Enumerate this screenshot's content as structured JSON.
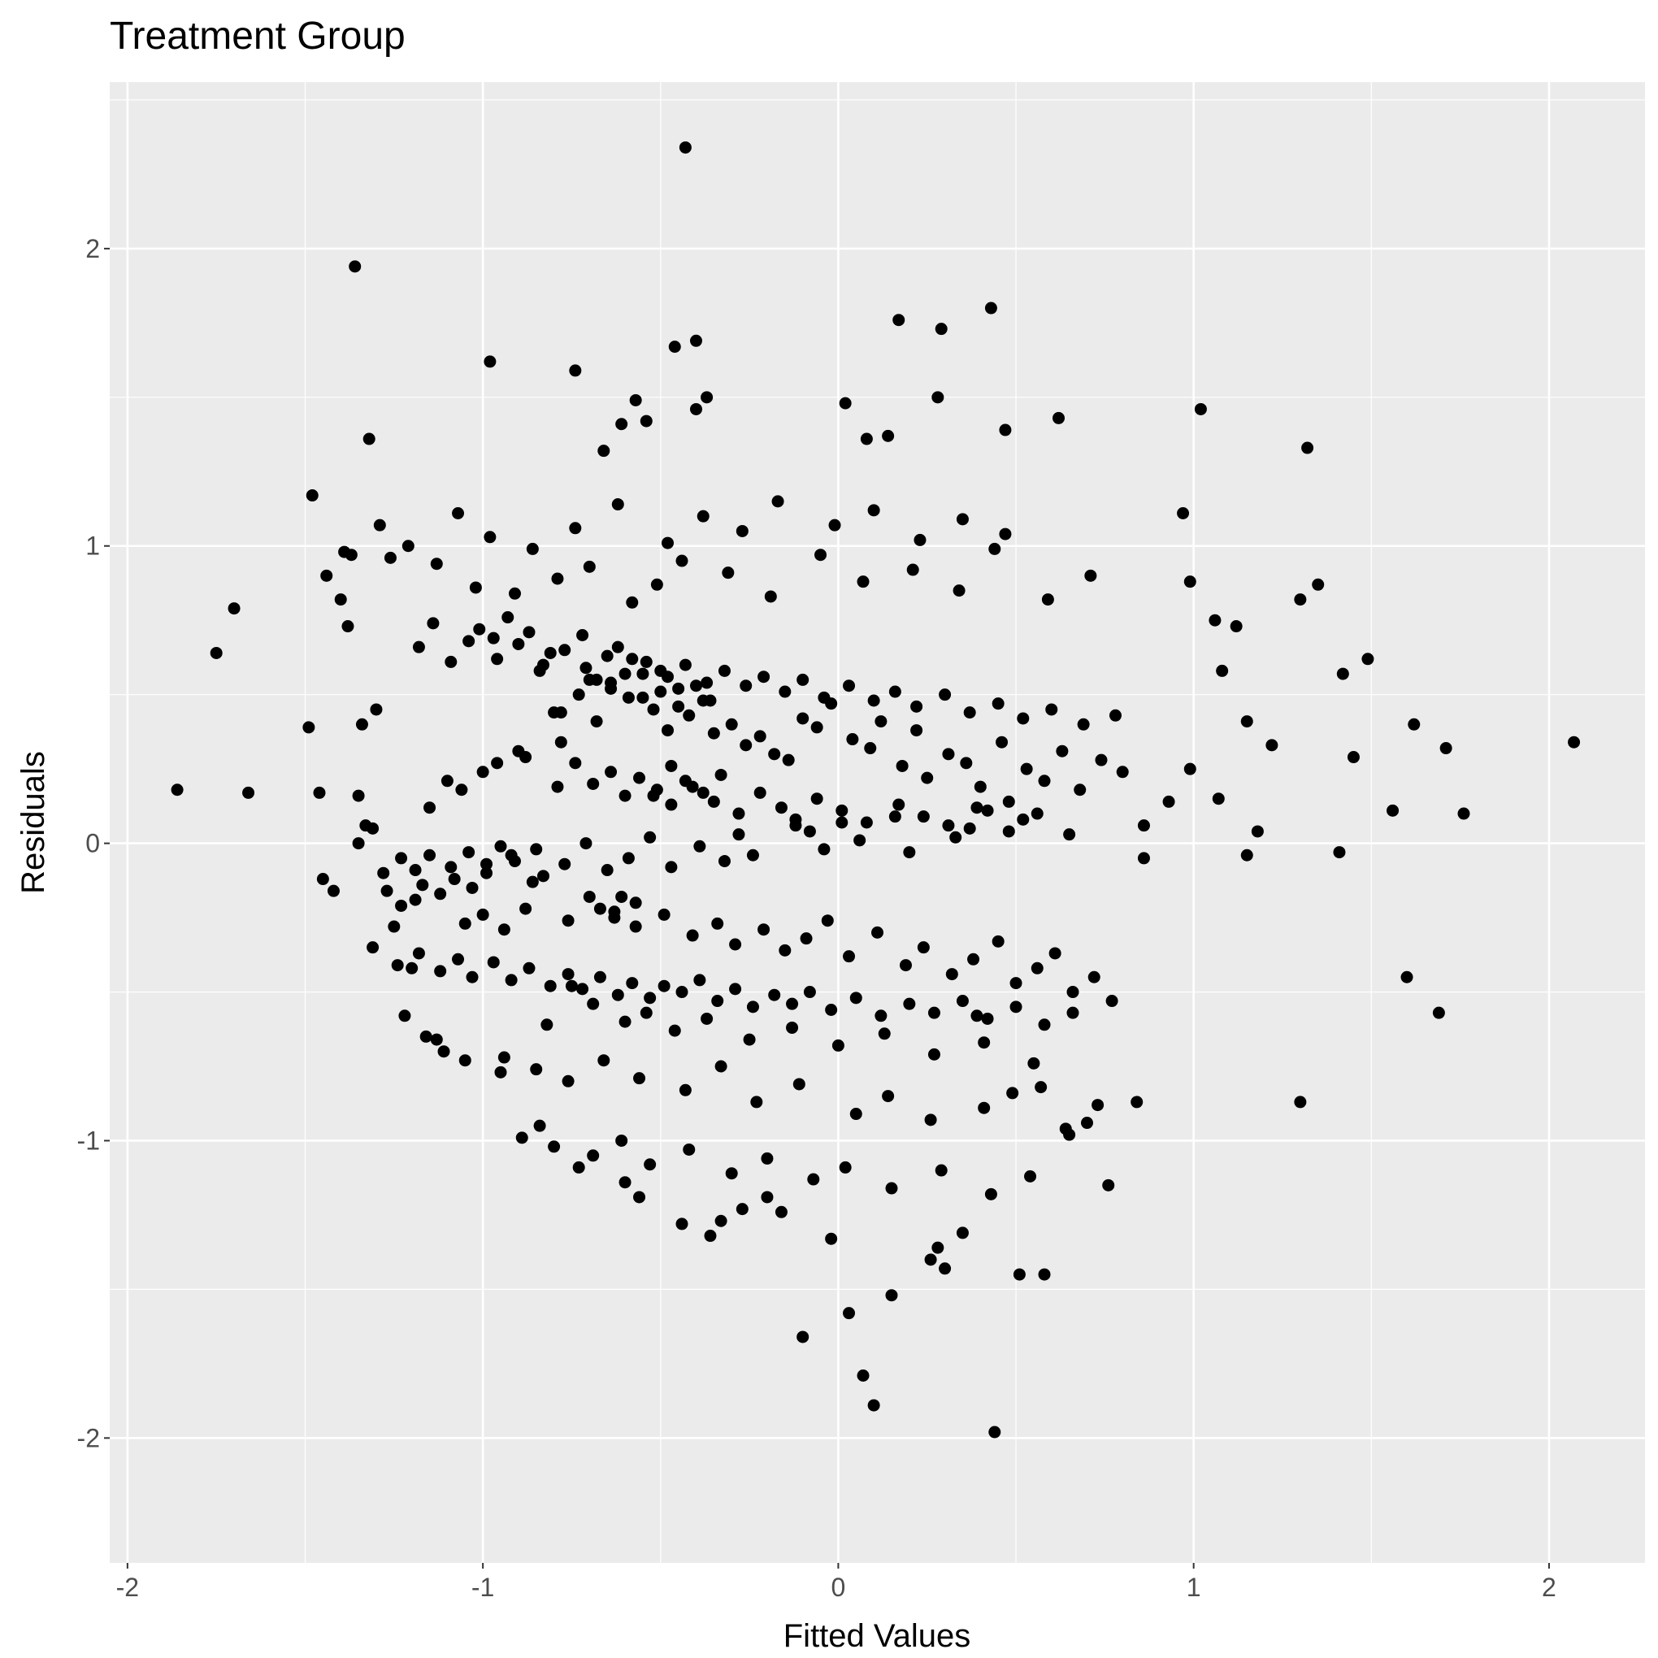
{
  "chart_data": {
    "type": "scatter",
    "title": "Treatment Group",
    "xlabel": "Fitted Values",
    "ylabel": "Residuals",
    "xlim": [
      -2.05,
      2.27
    ],
    "ylim": [
      -2.42,
      2.56
    ],
    "x_ticks": [
      -2,
      -1,
      0,
      1,
      2
    ],
    "x_tick_labels": [
      "-2",
      "-1",
      "0",
      "1",
      "2"
    ],
    "y_ticks": [
      -2,
      -1,
      0,
      1,
      2
    ],
    "y_tick_labels": [
      "-2",
      "-1",
      "0",
      "1",
      "2"
    ],
    "grid": true,
    "legend": "none",
    "colors": {
      "panel": "#EBEBEB",
      "grid": "#FFFFFF",
      "points": "#000000",
      "ticks": "#333333"
    },
    "series": [
      {
        "x": [
          -1.86,
          -1.75,
          -1.7,
          -1.66,
          -1.49,
          -1.48,
          -1.46,
          -1.45,
          -1.44,
          -1.42,
          -1.4,
          -1.39,
          -1.38,
          -1.37,
          -1.36,
          -1.35,
          -1.34,
          -1.33,
          -1.32,
          -1.31,
          -1.3,
          -1.29,
          -0.43,
          -0.46,
          -0.4,
          -0.74,
          -0.98,
          0.17,
          0.29,
          0.43,
          0.02,
          -0.37,
          0.28,
          0.47,
          -0.57,
          -0.61,
          -0.4,
          -0.66,
          -0.54,
          0.08,
          0.14,
          0.86,
          0.97,
          1.02,
          0.62,
          0.99,
          1.06,
          1.12,
          1.32,
          1.35,
          1.3,
          1.42,
          1.49,
          1.15,
          1.22,
          1.45,
          1.62,
          1.71,
          2.07,
          1.76,
          1.56,
          1.41,
          1.08,
          1.15,
          1.18,
          0.99,
          0.93,
          0.86,
          1.07,
          1.6,
          1.69,
          0.84,
          1.3,
          0.76,
          0.7,
          0.65,
          0.58,
          0.44,
          0.51,
          0.41,
          0.35,
          0.3,
          0.28,
          0.26,
          0.15,
          0.1,
          0.07,
          0.03,
          -0.1,
          -0.27,
          -0.2,
          -0.02,
          -0.16,
          -0.33,
          -0.36,
          -0.44,
          -0.56,
          -0.6,
          -0.73,
          -0.84,
          -0.95,
          -1.05,
          -1.13,
          -1.22,
          -1.2,
          -1.25,
          -0.62,
          -0.5,
          -0.58,
          -0.64,
          -0.7,
          -0.55,
          -0.52,
          -0.48,
          -0.68,
          -0.78,
          -0.88,
          -0.8,
          -0.9,
          -0.96,
          -1.0,
          -1.06,
          -1.1,
          -1.15,
          -0.45,
          -0.42,
          -0.38,
          -0.35,
          -0.3,
          -0.26,
          -0.22,
          -0.18,
          -0.14,
          -0.1,
          -0.06,
          -0.02,
          0.04,
          0.09,
          0.12,
          0.18,
          0.22,
          0.25,
          0.31,
          0.36,
          0.4,
          0.46,
          0.53,
          0.58,
          0.63,
          0.68,
          0.74,
          0.8,
          0.52,
          0.48,
          0.42,
          0.37,
          0.33,
          0.2,
          0.16,
          0.06,
          0.01,
          -0.04,
          -0.08,
          -0.12,
          -0.24,
          -0.28,
          -0.32,
          -0.39,
          -0.47,
          -0.53,
          -0.59,
          -0.65,
          -0.71,
          -0.77,
          -0.83,
          -0.86,
          -0.92,
          -0.99,
          -1.03,
          -1.08,
          -1.12,
          -1.17,
          -1.19,
          -1.23,
          -1.27,
          -0.67,
          -0.63,
          -0.61,
          -0.57,
          -0.49,
          -0.41,
          -0.34,
          -0.29,
          -0.21,
          -0.15,
          -0.09,
          -0.03,
          0.03,
          0.11,
          0.19,
          0.24,
          0.32,
          0.38,
          0.45,
          0.5,
          0.56,
          0.61,
          0.66,
          0.72,
          0.77,
          -0.75,
          -0.81,
          -0.87,
          -0.93,
          -0.97,
          -1.01,
          -1.04,
          -1.09,
          -1.14,
          -1.18,
          -0.72,
          -0.69,
          -0.6,
          -0.54,
          -0.46,
          -0.37,
          -0.25,
          -0.13,
          0.0,
          0.13,
          0.27,
          0.39,
          0.55,
          -0.82,
          -0.91,
          -0.79,
          -0.7,
          -0.58,
          -0.51,
          -0.44,
          -0.31,
          -0.19,
          -0.05,
          0.07,
          0.21,
          0.34,
          0.44,
          0.59,
          0.71,
          -1.02,
          -1.11,
          -1.16,
          -0.94,
          -0.85,
          -0.76,
          -0.66,
          -0.56,
          -0.43,
          -0.33,
          -0.23,
          -0.11,
          0.05,
          0.14,
          0.26,
          0.41,
          0.49,
          0.64,
          0.73,
          0.57,
          0.47,
          0.35,
          0.23,
          0.1,
          -0.01,
          -0.17,
          -0.27,
          -0.38,
          -0.48,
          -0.62,
          -0.74,
          -0.86,
          -0.98,
          -1.07,
          -1.21,
          -1.26,
          -1.13,
          -0.89,
          -0.8,
          -0.69,
          -0.61,
          -0.53,
          -0.42,
          -0.3,
          -0.2,
          -0.07,
          0.02,
          0.15,
          0.29,
          0.43,
          0.54,
          -0.64,
          -0.59,
          -0.55,
          -0.5,
          -0.45,
          -0.4,
          -0.36,
          -0.68,
          -0.73,
          -0.78,
          -0.84,
          -0.57,
          -0.63,
          -0.7,
          -0.76,
          -0.88,
          -0.94,
          -1.0,
          -1.05,
          -0.52,
          -0.47,
          -0.41,
          -0.35,
          -0.28,
          -0.22,
          -0.16,
          -0.12,
          -0.06,
          0.01,
          0.08,
          0.17,
          0.24,
          0.31,
          0.39,
          0.48,
          0.56,
          0.65,
          -0.96,
          -0.9,
          -0.83,
          -0.77,
          -0.71,
          -0.65,
          -0.6,
          -0.54,
          -0.48,
          -0.43,
          -0.37,
          -0.32,
          -0.26,
          -0.21,
          -0.15,
          -0.1,
          -0.04,
          0.03,
          0.1,
          0.16,
          0.22,
          0.3,
          0.37,
          0.45,
          0.52,
          0.6,
          0.69,
          0.78,
          -1.24,
          -1.18,
          -1.12,
          -1.07,
          -1.03,
          -0.97,
          -0.92,
          -0.87,
          -0.81,
          -0.76,
          -0.72,
          -0.67,
          -0.62,
          -0.58,
          -0.53,
          -0.49,
          -0.44,
          -0.39,
          -0.34,
          -0.29,
          -0.24,
          -0.18,
          -0.13,
          -0.08,
          -0.02,
          0.05,
          0.12,
          0.2,
          0.27,
          0.35,
          0.42,
          0.5,
          0.58,
          0.66,
          -0.69,
          -0.64,
          -0.6,
          -0.56,
          -0.51,
          -0.47,
          -0.43,
          -0.38,
          -0.33,
          -0.79,
          -0.74,
          -0.85,
          -0.91,
          -0.95,
          -0.99,
          -1.04,
          -1.09,
          -1.15,
          -1.19,
          -1.23,
          -1.28,
          -1.31,
          -1.35
        ],
        "y": [
          0.18,
          0.64,
          0.79,
          0.17,
          0.39,
          1.17,
          0.17,
          -0.12,
          0.9,
          -0.16,
          0.82,
          0.98,
          0.73,
          0.97,
          1.94,
          0.16,
          0.4,
          0.06,
          1.36,
          -0.35,
          0.45,
          1.07,
          2.34,
          1.67,
          1.69,
          1.59,
          1.62,
          1.76,
          1.73,
          1.8,
          1.48,
          1.5,
          1.5,
          1.39,
          1.49,
          1.41,
          1.46,
          1.32,
          1.42,
          1.36,
          1.37,
          0.06,
          1.11,
          1.46,
          1.43,
          0.88,
          0.75,
          0.73,
          1.33,
          0.87,
          0.82,
          0.57,
          0.62,
          0.41,
          0.33,
          0.29,
          0.4,
          0.32,
          0.34,
          0.1,
          0.11,
          -0.03,
          0.58,
          -0.04,
          0.04,
          0.25,
          0.14,
          -0.05,
          0.15,
          -0.45,
          -0.57,
          -0.87,
          -0.87,
          -1.15,
          -0.94,
          -0.98,
          -1.45,
          -1.98,
          -1.45,
          -0.67,
          -1.31,
          -1.43,
          -1.36,
          -1.4,
          -1.52,
          -1.89,
          -1.79,
          -1.58,
          -1.66,
          -1.23,
          -1.19,
          -1.33,
          -1.24,
          -1.27,
          -1.32,
          -1.28,
          -1.19,
          -1.14,
          -1.09,
          -0.95,
          -0.77,
          -0.73,
          -0.66,
          -0.58,
          -0.42,
          -0.28,
          0.66,
          0.58,
          0.62,
          0.52,
          0.55,
          0.49,
          0.45,
          0.38,
          0.41,
          0.34,
          0.29,
          0.44,
          0.31,
          0.27,
          0.24,
          0.18,
          0.21,
          0.12,
          0.52,
          0.43,
          0.48,
          0.37,
          0.4,
          0.33,
          0.36,
          0.3,
          0.28,
          0.42,
          0.39,
          0.47,
          0.35,
          0.32,
          0.41,
          0.26,
          0.38,
          0.22,
          0.3,
          0.27,
          0.19,
          0.34,
          0.25,
          0.21,
          0.31,
          0.18,
          0.28,
          0.24,
          0.08,
          0.14,
          0.11,
          0.05,
          0.02,
          -0.03,
          0.09,
          0.01,
          0.07,
          -0.02,
          0.04,
          0.06,
          -0.04,
          0.03,
          -0.06,
          -0.01,
          -0.08,
          0.02,
          -0.05,
          -0.09,
          0.0,
          -0.07,
          -0.11,
          -0.13,
          -0.04,
          -0.1,
          -0.15,
          -0.12,
          -0.17,
          -0.14,
          -0.19,
          -0.21,
          -0.16,
          -0.22,
          -0.25,
          -0.18,
          -0.28,
          -0.24,
          -0.31,
          -0.27,
          -0.34,
          -0.29,
          -0.36,
          -0.32,
          -0.26,
          -0.38,
          -0.3,
          -0.41,
          -0.35,
          -0.44,
          -0.39,
          -0.33,
          -0.47,
          -0.42,
          -0.37,
          -0.5,
          -0.45,
          -0.53,
          -0.48,
          0.64,
          0.71,
          0.76,
          0.69,
          0.72,
          0.68,
          0.61,
          0.74,
          0.66,
          0.7,
          -0.54,
          -0.6,
          -0.57,
          -0.63,
          -0.59,
          -0.66,
          -0.62,
          -0.68,
          -0.64,
          -0.71,
          -0.58,
          -0.74,
          -0.61,
          0.84,
          0.89,
          0.93,
          0.81,
          0.87,
          0.95,
          0.91,
          0.83,
          0.97,
          0.88,
          0.92,
          0.85,
          0.99,
          0.82,
          0.9,
          0.86,
          -0.7,
          -0.65,
          -0.72,
          -0.76,
          -0.8,
          -0.73,
          -0.79,
          -0.83,
          -0.75,
          -0.87,
          -0.81,
          -0.91,
          -0.85,
          -0.93,
          -0.89,
          -0.84,
          -0.96,
          -0.88,
          -0.82,
          1.04,
          1.09,
          1.02,
          1.12,
          1.07,
          1.15,
          1.05,
          1.1,
          1.01,
          1.14,
          1.06,
          0.99,
          1.03,
          1.11,
          1.0,
          0.96,
          0.94,
          -0.99,
          -1.02,
          -1.05,
          -1.0,
          -1.08,
          -1.03,
          -1.11,
          -1.06,
          -1.13,
          -1.09,
          -1.16,
          -1.1,
          -1.18,
          -1.12,
          0.54,
          0.49,
          0.57,
          0.51,
          0.46,
          0.53,
          0.48,
          0.55,
          0.5,
          0.44,
          0.58,
          -0.2,
          -0.23,
          -0.18,
          -0.26,
          -0.22,
          -0.29,
          -0.24,
          -0.27,
          0.16,
          0.13,
          0.19,
          0.14,
          0.1,
          0.17,
          0.12,
          0.08,
          0.15,
          0.11,
          0.07,
          0.13,
          0.09,
          0.06,
          0.12,
          0.04,
          0.1,
          0.03,
          0.62,
          0.67,
          0.6,
          0.65,
          0.59,
          0.63,
          0.57,
          0.61,
          0.56,
          0.6,
          0.54,
          0.58,
          0.53,
          0.56,
          0.51,
          0.55,
          0.49,
          0.53,
          0.48,
          0.51,
          0.46,
          0.5,
          0.44,
          0.47,
          0.42,
          0.45,
          0.4,
          0.43,
          -0.41,
          -0.37,
          -0.43,
          -0.39,
          -0.45,
          -0.4,
          -0.46,
          -0.42,
          -0.48,
          -0.44,
          -0.49,
          -0.45,
          -0.51,
          -0.47,
          -0.52,
          -0.48,
          -0.5,
          -0.46,
          -0.53,
          -0.49,
          -0.55,
          -0.51,
          -0.54,
          -0.5,
          -0.56,
          -0.52,
          -0.58,
          -0.54,
          -0.57,
          -0.53,
          -0.59,
          -0.55,
          -0.61,
          -0.57,
          0.2,
          0.24,
          0.16,
          0.22,
          0.18,
          0.26,
          0.21,
          0.17,
          0.23,
          0.19,
          0.27,
          -0.02,
          -0.06,
          -0.01,
          -0.07,
          -0.03,
          -0.08,
          -0.04,
          -0.09,
          -0.05,
          -0.1,
          0.05,
          0.0
        ]
      }
    ]
  }
}
